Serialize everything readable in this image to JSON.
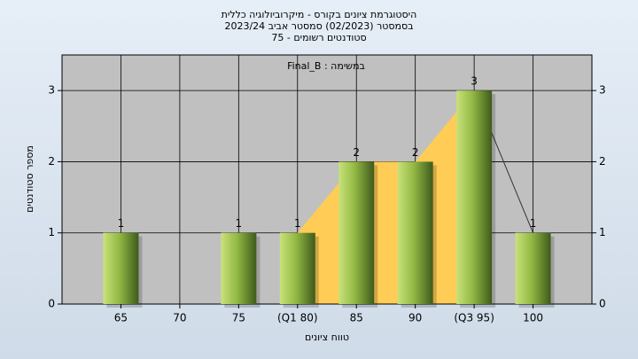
{
  "chart_data": {
    "type": "bar",
    "title": [
      "היסטוגרמת ציונים בקורס - מיקרוביולוגיה כללית",
      "בסמסטר (02/2023) סמסטר אביב 2023/24",
      "סטודנטים רשומים - 75"
    ],
    "annotation": "במשימה : Final_B",
    "x_label": "טווח ציונים",
    "y_label": "מספר סטודנטים",
    "categories": [
      "65",
      "70",
      "75",
      "(Q1 80)",
      "85",
      "90",
      "(Q3 95)",
      "100"
    ],
    "values": [
      1,
      0,
      1,
      1,
      2,
      2,
      3,
      1
    ],
    "value_labels": [
      "1",
      null,
      "1",
      "1",
      "2",
      "2",
      "3",
      "1"
    ],
    "color": "#8fb83c",
    "ylim": [
      0,
      3.5
    ],
    "yticks": [
      0,
      1,
      2,
      3
    ],
    "y2ticks": [
      0,
      1,
      2,
      3
    ],
    "grid": true
  }
}
